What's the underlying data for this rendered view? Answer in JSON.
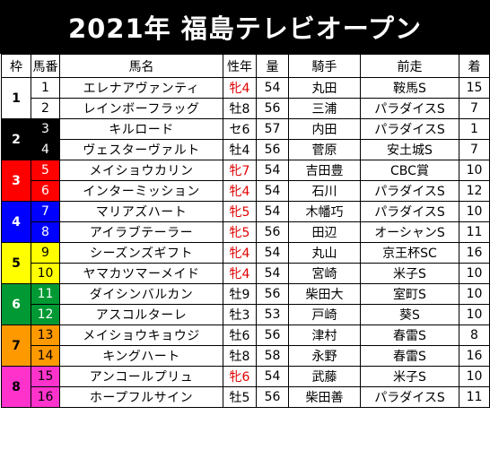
{
  "title": "2021年 福島テレビオープン",
  "columns": {
    "waku": "枠",
    "umaban": "馬番",
    "name": "馬名",
    "sexage": "性年",
    "kinryo": "量",
    "jockey": "騎手",
    "prev": "前走",
    "finish": "着"
  },
  "colors": {
    "waku1": "#ffffff",
    "waku2": "#000000",
    "waku3": "#ff0000",
    "waku4": "#0000ff",
    "waku5": "#ffff00",
    "waku6": "#009933",
    "waku7": "#ff9900",
    "waku8": "#ff33cc",
    "filly_text": "#e00000"
  },
  "frames": [
    {
      "waku": "1",
      "horses": [
        {
          "num": "1",
          "name": "エレナアヴァンティ",
          "sexage": "牝4",
          "filly": true,
          "kin": "54",
          "jockey": "丸田",
          "prev": "鞍馬S",
          "fin": "15"
        },
        {
          "num": "2",
          "name": "レインボーフラッグ",
          "sexage": "牡8",
          "filly": false,
          "kin": "56",
          "jockey": "三浦",
          "prev": "パラダイスS",
          "fin": "7"
        }
      ]
    },
    {
      "waku": "2",
      "horses": [
        {
          "num": "3",
          "name": "キルロード",
          "sexage": "セ6",
          "filly": false,
          "kin": "57",
          "jockey": "内田",
          "prev": "パラダイスS",
          "fin": "1"
        },
        {
          "num": "4",
          "name": "ヴェスターヴァルト",
          "sexage": "牡4",
          "filly": false,
          "kin": "56",
          "jockey": "菅原",
          "prev": "安土城S",
          "fin": "7"
        }
      ]
    },
    {
      "waku": "3",
      "horses": [
        {
          "num": "5",
          "name": "メイショウカリン",
          "sexage": "牝7",
          "filly": true,
          "kin": "54",
          "jockey": "吉田豊",
          "prev": "CBC賞",
          "fin": "10"
        },
        {
          "num": "6",
          "name": "インターミッション",
          "sexage": "牝4",
          "filly": true,
          "kin": "54",
          "jockey": "石川",
          "prev": "パラダイスS",
          "fin": "12"
        }
      ]
    },
    {
      "waku": "4",
      "horses": [
        {
          "num": "7",
          "name": "マリアズハート",
          "sexage": "牝5",
          "filly": true,
          "kin": "54",
          "jockey": "木幡巧",
          "prev": "パラダイスS",
          "fin": "10"
        },
        {
          "num": "8",
          "name": "アイラブテーラー",
          "sexage": "牝5",
          "filly": true,
          "kin": "56",
          "jockey": "田辺",
          "prev": "オーシャンS",
          "fin": "11"
        }
      ]
    },
    {
      "waku": "5",
      "horses": [
        {
          "num": "9",
          "name": "シーズンズギフト",
          "sexage": "牝4",
          "filly": true,
          "kin": "54",
          "jockey": "丸山",
          "prev": "京王杯SC",
          "fin": "16"
        },
        {
          "num": "10",
          "name": "ヤマカツマーメイド",
          "sexage": "牝4",
          "filly": true,
          "kin": "54",
          "jockey": "宮崎",
          "prev": "米子S",
          "fin": "10"
        }
      ]
    },
    {
      "waku": "6",
      "horses": [
        {
          "num": "11",
          "name": "ダイシンバルカン",
          "sexage": "牡9",
          "filly": false,
          "kin": "56",
          "jockey": "柴田大",
          "prev": "室町S",
          "fin": "10"
        },
        {
          "num": "12",
          "name": "アスコルターレ",
          "sexage": "牡3",
          "filly": false,
          "kin": "53",
          "jockey": "戸崎",
          "prev": "葵S",
          "fin": "10"
        }
      ]
    },
    {
      "waku": "7",
      "horses": [
        {
          "num": "13",
          "name": "メイショウキョウジ",
          "sexage": "牡6",
          "filly": false,
          "kin": "56",
          "jockey": "津村",
          "prev": "春雷S",
          "fin": "8"
        },
        {
          "num": "14",
          "name": "キングハート",
          "sexage": "牡8",
          "filly": false,
          "kin": "58",
          "jockey": "永野",
          "prev": "春雷S",
          "fin": "16"
        }
      ]
    },
    {
      "waku": "8",
      "horses": [
        {
          "num": "15",
          "name": "アンコールプリュ",
          "sexage": "牝6",
          "filly": true,
          "kin": "54",
          "jockey": "武藤",
          "prev": "米子S",
          "fin": "10"
        },
        {
          "num": "16",
          "name": "ホープフルサイン",
          "sexage": "牡5",
          "filly": false,
          "kin": "56",
          "jockey": "柴田善",
          "prev": "パラダイスS",
          "fin": "11"
        }
      ]
    }
  ]
}
